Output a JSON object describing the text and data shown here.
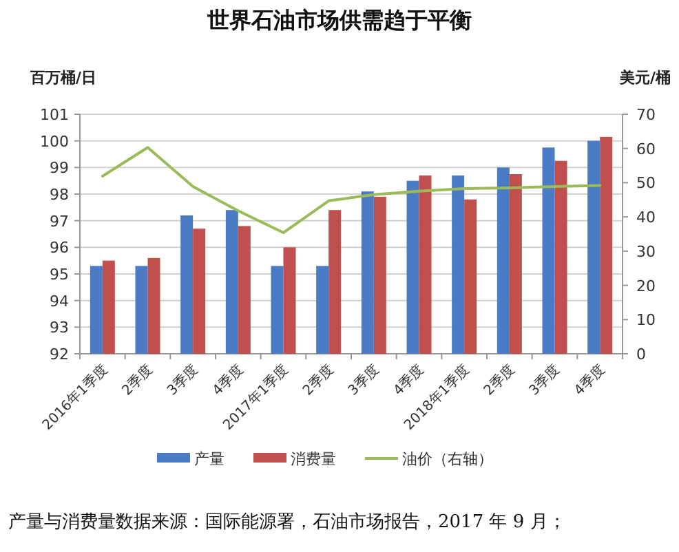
{
  "chart_data": {
    "type": "bar",
    "title": "世界石油市场供需趋于平衡",
    "categories": [
      "2016年1季度",
      "2季度",
      "3季度",
      "4季度",
      "2017年1季度",
      "2季度",
      "3季度",
      "4季度",
      "2018年1季度",
      "2季度",
      "3季度",
      "4季度"
    ],
    "series": [
      {
        "name": "产量",
        "color": "#4a7bc4",
        "values": [
          95.3,
          95.3,
          97.2,
          97.4,
          95.3,
          95.3,
          98.1,
          98.5,
          98.7,
          99.0,
          99.75,
          100.0
        ]
      },
      {
        "name": "消费量",
        "color": "#c0504d",
        "values": [
          95.5,
          95.6,
          96.7,
          96.8,
          96.0,
          97.4,
          97.9,
          98.7,
          97.8,
          98.75,
          99.25,
          100.15
        ]
      },
      {
        "name": "油价（右轴）",
        "color": "#9bbb59",
        "type": "line",
        "axis": "y2",
        "values": [
          51.9,
          60.3,
          48.9,
          41.8,
          35.4,
          44.7,
          46.5,
          47.5,
          48.3,
          48.5,
          48.9,
          49.2
        ]
      }
    ],
    "ylabel": "百万桶/日",
    "y2label": "美元/桶",
    "ylim": [
      92,
      101
    ],
    "yticks": [
      92,
      93,
      94,
      95,
      96,
      97,
      98,
      99,
      100,
      101
    ],
    "y2lim": [
      0,
      70
    ],
    "y2ticks": [
      0,
      10,
      20,
      30,
      40,
      50,
      60,
      70
    ],
    "grid": "y",
    "legend": "bottom",
    "annotations": [
      "产量与消费量数据来源：国际能源署，石油市场报告，2017 年 9 月；"
    ]
  }
}
